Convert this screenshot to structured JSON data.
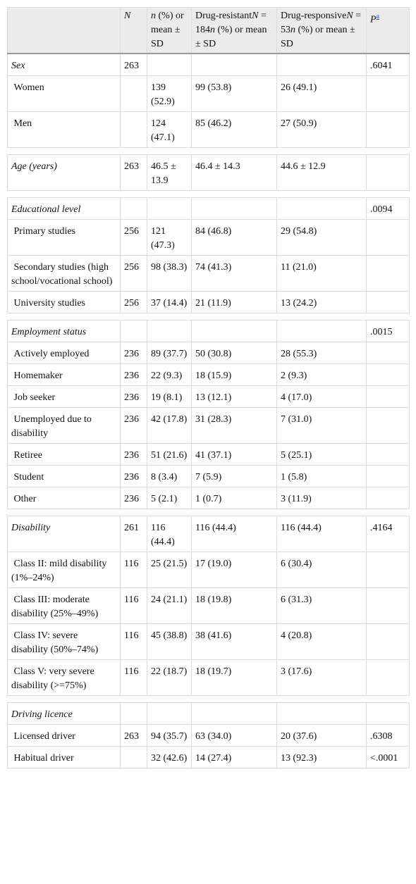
{
  "table": {
    "header": [
      [],
      [
        {
          "text": "N",
          "italic": true
        }
      ],
      [
        {
          "text": "n",
          "italic": true
        },
        {
          "text": " (%) or mean ± SD",
          "italic": false
        }
      ],
      [
        {
          "text": "Drug-resistant",
          "italic": false
        },
        {
          "text": "N",
          "italic": true
        },
        {
          "text": " = 184",
          "italic": false
        },
        {
          "text": "n",
          "italic": true
        },
        {
          "text": " (%) or mean ± SD",
          "italic": false
        }
      ],
      [
        {
          "text": "Drug-responsive",
          "italic": false
        },
        {
          "text": "N",
          "italic": true
        },
        {
          "text": " = 53",
          "italic": false
        },
        {
          "text": "n",
          "italic": true
        },
        {
          "text": " (%) or mean ± SD",
          "italic": false
        }
      ],
      [
        {
          "text": "P",
          "italic": true
        },
        {
          "text": "a",
          "note": true
        }
      ]
    ],
    "sections": [
      {
        "rows": [
          [
            "Sex",
            "263",
            null,
            null,
            null,
            ".6041"
          ],
          [
            "Women",
            null,
            "139 (52.9)",
            "99 (53.8)",
            "26 (49.1)",
            null
          ],
          [
            "Men",
            null,
            "124 (47.1)",
            "85 (46.2)",
            "27 (50.9)",
            null
          ]
        ]
      },
      {
        "rows": [
          [
            "Age (years)",
            "263",
            "46.5 ± 13.9",
            "46.4 ± 14.3",
            "44.6 ± 12.9",
            null
          ]
        ]
      },
      {
        "rows": [
          [
            "Educational level",
            null,
            null,
            null,
            null,
            ".0094"
          ],
          [
            "Primary studies",
            "256",
            "121 (47.3)",
            "84 (46.8)",
            "29 (54.8)",
            null
          ],
          [
            "Secondary studies (high school/vocational school)",
            "256",
            "98 (38.3)",
            "74 (41.3)",
            "11 (21.0)",
            null
          ],
          [
            "University studies",
            "256",
            "37 (14.4)",
            "21 (11.9)",
            "13 (24.2)",
            null
          ]
        ]
      },
      {
        "rows": [
          [
            "Employment status",
            null,
            null,
            null,
            null,
            ".0015"
          ],
          [
            "Actively employed",
            "236",
            "89 (37.7)",
            "50 (30.8)",
            "28 (55.3)",
            null
          ],
          [
            "Homemaker",
            "236",
            "22 (9.3)",
            "18 (15.9)",
            "2 (9.3)",
            null
          ],
          [
            "Job seeker",
            "236",
            "19 (8.1)",
            "13 (12.1)",
            "4 (17.0)",
            null
          ],
          [
            "Unemployed due to disability",
            "236",
            "42 (17.8)",
            "31 (28.3)",
            "7 (31.0)",
            null
          ],
          [
            "Retiree",
            "236",
            "51 (21.6)",
            "41 (37.1)",
            "5 (25.1)",
            null
          ],
          [
            "Student",
            "236",
            "8 (3.4)",
            "7 (5.9)",
            "1 (5.8)",
            null
          ],
          [
            "Other",
            "236",
            "5 (2.1)",
            "1 (0.7)",
            "3 (11.9)",
            null
          ]
        ]
      },
      {
        "rows": [
          [
            "Disability",
            "261",
            "116 (44.4)",
            "116 (44.4)",
            "116 (44.4)",
            ".4164"
          ],
          [
            "Class II: mild disability (1%–24%)",
            "116",
            "25 (21.5)",
            "17 (19.0)",
            "6 (30.4)",
            null
          ],
          [
            "Class III: moderate disability (25%–49%)",
            "116",
            "24 (21.1)",
            "18 (19.8)",
            "6 (31.3)",
            null
          ],
          [
            "Class IV: severe disability (50%–74%)",
            "116",
            "45 (38.8)",
            "38 (41.6)",
            "4 (20.8)",
            null
          ],
          [
            "Class V: very severe disability (>=75%)",
            "116",
            "22 (18.7)",
            "18 (19.7)",
            "3 (17.6)",
            null
          ]
        ]
      },
      {
        "rows": [
          [
            "Driving licence",
            null,
            null,
            null,
            null,
            null
          ],
          [
            "Licensed driver",
            "263",
            "94 (35.7)",
            "63 (34.0)",
            "20 (37.6)",
            ".6308"
          ],
          [
            "Habitual driver",
            null,
            "32 (42.6)",
            "14 (27.4)",
            "13 (92.3)",
            "<.0001"
          ]
        ]
      }
    ]
  }
}
